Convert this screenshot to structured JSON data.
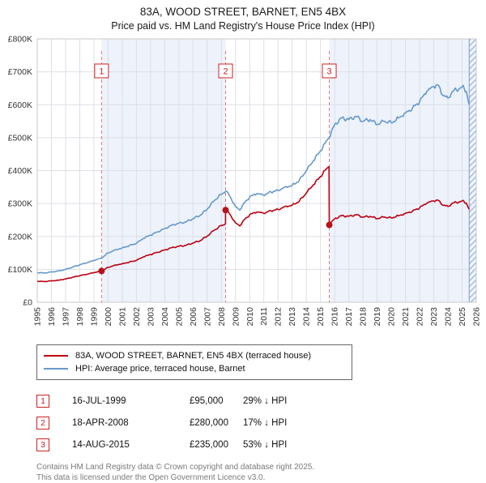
{
  "header": {
    "title": "83A, WOOD STREET, BARNET, EN5 4BX",
    "subtitle": "Price paid vs. HM Land Registry's House Price Index (HPI)"
  },
  "chart_data": {
    "type": "line",
    "xlim": [
      1995,
      2026
    ],
    "ylim": [
      0,
      800
    ],
    "y_unit": "GBP thousands",
    "x_ticks": [
      1995,
      1996,
      1997,
      1998,
      1999,
      2000,
      2001,
      2002,
      2003,
      2004,
      2005,
      2006,
      2007,
      2008,
      2009,
      2010,
      2011,
      2012,
      2013,
      2014,
      2015,
      2016,
      2017,
      2018,
      2019,
      2020,
      2021,
      2022,
      2023,
      2024,
      2025,
      2026
    ],
    "y_ticks": [
      {
        "v": 0,
        "label": "£0"
      },
      {
        "v": 100,
        "label": "£100K"
      },
      {
        "v": 200,
        "label": "£200K"
      },
      {
        "v": 300,
        "label": "£300K"
      },
      {
        "v": 400,
        "label": "£400K"
      },
      {
        "v": 500,
        "label": "£500K"
      },
      {
        "v": 600,
        "label": "£600K"
      },
      {
        "v": 700,
        "label": "£700K"
      },
      {
        "v": 800,
        "label": "£800K"
      }
    ],
    "bands": [
      [
        1999.54,
        2008.3
      ],
      [
        2015.62,
        2025.5
      ]
    ],
    "hatch": [
      2025.5,
      2026
    ],
    "series": [
      {
        "id": "price-paid",
        "name": "83A, WOOD STREET, BARNET, EN5 4BX (terraced house)",
        "color": "#bb0011",
        "points": [
          [
            1995,
            64
          ],
          [
            1995.5,
            63
          ],
          [
            1996,
            65
          ],
          [
            1996.5,
            67
          ],
          [
            1997,
            71
          ],
          [
            1997.5,
            76
          ],
          [
            1998,
            81
          ],
          [
            1998.5,
            85
          ],
          [
            1999,
            90
          ],
          [
            1999.54,
            95
          ],
          [
            2000,
            106
          ],
          [
            2000.5,
            113
          ],
          [
            2001,
            117
          ],
          [
            2001.5,
            122
          ],
          [
            2002,
            127
          ],
          [
            2002.5,
            138
          ],
          [
            2003,
            145
          ],
          [
            2003.5,
            152
          ],
          [
            2004,
            159
          ],
          [
            2004.5,
            166
          ],
          [
            2005,
            170
          ],
          [
            2005.5,
            173
          ],
          [
            2006,
            180
          ],
          [
            2006.5,
            187
          ],
          [
            2007,
            201
          ],
          [
            2007.5,
            219
          ],
          [
            2008,
            233
          ],
          [
            2008.29,
            238
          ],
          [
            2008.3,
            280
          ],
          [
            2008.5,
            274
          ],
          [
            2009,
            241
          ],
          [
            2009.3,
            232
          ],
          [
            2009.5,
            245
          ],
          [
            2010,
            266
          ],
          [
            2010.5,
            274
          ],
          [
            2011,
            270
          ],
          [
            2011.5,
            278
          ],
          [
            2012,
            282
          ],
          [
            2012.5,
            291
          ],
          [
            2013,
            295
          ],
          [
            2013.5,
            307
          ],
          [
            2014,
            332
          ],
          [
            2014.5,
            357
          ],
          [
            2015,
            382
          ],
          [
            2015.3,
            400
          ],
          [
            2015.6,
            412
          ],
          [
            2015.62,
            235
          ],
          [
            2016,
            254
          ],
          [
            2016.5,
            263
          ],
          [
            2017,
            261
          ],
          [
            2017.5,
            266
          ],
          [
            2018,
            259
          ],
          [
            2018.5,
            261
          ],
          [
            2019,
            254
          ],
          [
            2019.5,
            259
          ],
          [
            2020,
            256
          ],
          [
            2020.5,
            263
          ],
          [
            2021,
            270
          ],
          [
            2021.5,
            277
          ],
          [
            2022,
            287
          ],
          [
            2022.5,
            301
          ],
          [
            2023,
            308
          ],
          [
            2023.3,
            310
          ],
          [
            2023.6,
            296
          ],
          [
            2024,
            291
          ],
          [
            2024.3,
            301
          ],
          [
            2024.6,
            303
          ],
          [
            2025,
            308
          ],
          [
            2025.3,
            301
          ],
          [
            2025.5,
            282
          ]
        ]
      },
      {
        "id": "hpi",
        "name": "HPI: Average price, terraced house, Barnet",
        "color": "#6699cc",
        "points": [
          [
            1995,
            90
          ],
          [
            1995.5,
            89
          ],
          [
            1996,
            92
          ],
          [
            1996.5,
            95
          ],
          [
            1997,
            100
          ],
          [
            1997.5,
            107
          ],
          [
            1998,
            114
          ],
          [
            1998.5,
            120
          ],
          [
            1999,
            127
          ],
          [
            1999.54,
            134
          ],
          [
            2000,
            150
          ],
          [
            2000.5,
            159
          ],
          [
            2001,
            165
          ],
          [
            2001.5,
            172
          ],
          [
            2002,
            179
          ],
          [
            2002.5,
            194
          ],
          [
            2003,
            204
          ],
          [
            2003.5,
            214
          ],
          [
            2004,
            224
          ],
          [
            2004.5,
            234
          ],
          [
            2005,
            240
          ],
          [
            2005.5,
            244
          ],
          [
            2006,
            254
          ],
          [
            2006.5,
            264
          ],
          [
            2007,
            283
          ],
          [
            2007.5,
            309
          ],
          [
            2008,
            328
          ],
          [
            2008.3,
            337
          ],
          [
            2008.5,
            330
          ],
          [
            2009,
            291
          ],
          [
            2009.3,
            280
          ],
          [
            2009.5,
            295
          ],
          [
            2010,
            320
          ],
          [
            2010.5,
            330
          ],
          [
            2011,
            325
          ],
          [
            2011.5,
            335
          ],
          [
            2012,
            340
          ],
          [
            2012.5,
            350
          ],
          [
            2013,
            355
          ],
          [
            2013.5,
            370
          ],
          [
            2014,
            400
          ],
          [
            2014.5,
            430
          ],
          [
            2015,
            460
          ],
          [
            2015.3,
            482
          ],
          [
            2015.6,
            500
          ],
          [
            2016,
            540
          ],
          [
            2016.5,
            560
          ],
          [
            2017,
            555
          ],
          [
            2017.5,
            565
          ],
          [
            2018,
            550
          ],
          [
            2018.5,
            555
          ],
          [
            2019,
            540
          ],
          [
            2019.5,
            550
          ],
          [
            2020,
            545
          ],
          [
            2020.5,
            560
          ],
          [
            2021,
            575
          ],
          [
            2021.5,
            590
          ],
          [
            2022,
            610
          ],
          [
            2022.5,
            640
          ],
          [
            2023,
            655
          ],
          [
            2023.3,
            660
          ],
          [
            2023.6,
            630
          ],
          [
            2024,
            620
          ],
          [
            2024.3,
            640
          ],
          [
            2024.6,
            645
          ],
          [
            2025,
            655
          ],
          [
            2025.3,
            640
          ],
          [
            2025.5,
            600
          ]
        ]
      }
    ],
    "sales": [
      {
        "label": "1",
        "year": 1999.54,
        "price_k": 95
      },
      {
        "label": "2",
        "year": 2008.3,
        "price_k": 280
      },
      {
        "label": "3",
        "year": 2015.62,
        "price_k": 235
      }
    ]
  },
  "transactions": [
    {
      "marker": "1",
      "date": "16-JUL-1999",
      "price": "£95,000",
      "vs_hpi": "29% ↓ HPI"
    },
    {
      "marker": "2",
      "date": "18-APR-2008",
      "price": "£280,000",
      "vs_hpi": "17% ↓ HPI"
    },
    {
      "marker": "3",
      "date": "14-AUG-2015",
      "price": "£235,000",
      "vs_hpi": "53% ↓ HPI"
    }
  ],
  "footer": {
    "line1": "Contains HM Land Registry data © Crown copyright and database right 2025.",
    "line2": "This data is licensed under the Open Government Licence v3.0."
  }
}
